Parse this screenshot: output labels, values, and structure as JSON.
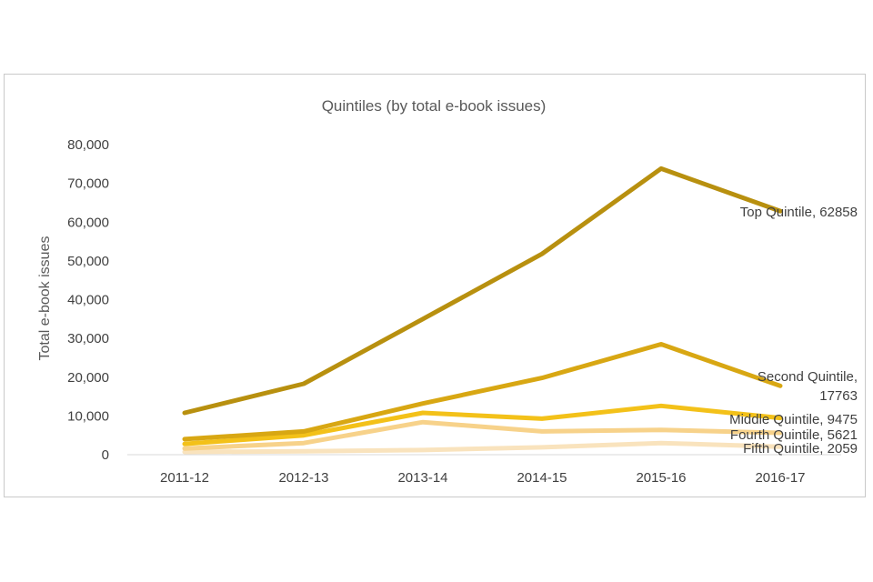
{
  "chart_data": {
    "type": "line",
    "title": "Quintiles (by total e-book issues)",
    "xlabel": "",
    "ylabel": "Total e-book issues",
    "categories": [
      "2011-12",
      "2012-13",
      "2013-14",
      "2014-15",
      "2015-16",
      "2016-17"
    ],
    "ylim": [
      0,
      80000
    ],
    "yticks": [
      0,
      10000,
      20000,
      30000,
      40000,
      50000,
      60000,
      70000,
      80000
    ],
    "ytick_labels": [
      "0",
      "10,000",
      "20,000",
      "30,000",
      "40,000",
      "50,000",
      "60,000",
      "70,000",
      "80,000"
    ],
    "grid": false,
    "legend": "none",
    "series": [
      {
        "name": "Top Quintile",
        "values": [
          10800,
          18300,
          35000,
          51800,
          73800,
          62858
        ],
        "color": "#b8900f",
        "label_lines": [
          "Top Quintile, 62858"
        ]
      },
      {
        "name": "Second Quintile",
        "values": [
          4000,
          6000,
          13200,
          19800,
          28500,
          17763
        ],
        "color": "#d8a713",
        "label_lines": [
          "Second Quintile,",
          "17763"
        ]
      },
      {
        "name": "Middle Quintile",
        "values": [
          2800,
          5000,
          10800,
          9300,
          12600,
          9475
        ],
        "color": "#f3c119",
        "label_lines": [
          "Middle Quintile, 9475"
        ]
      },
      {
        "name": "Fourth Quintile",
        "values": [
          1600,
          3000,
          8400,
          6000,
          6400,
          5621
        ],
        "color": "#f7d28a",
        "label_lines": [
          "Fourth Quintile, 5621"
        ]
      },
      {
        "name": "Fifth Quintile",
        "values": [
          700,
          900,
          1200,
          1900,
          3000,
          2059
        ],
        "color": "#f9e3bd",
        "label_lines": [
          "Fifth Quintile, 2059"
        ]
      }
    ]
  }
}
